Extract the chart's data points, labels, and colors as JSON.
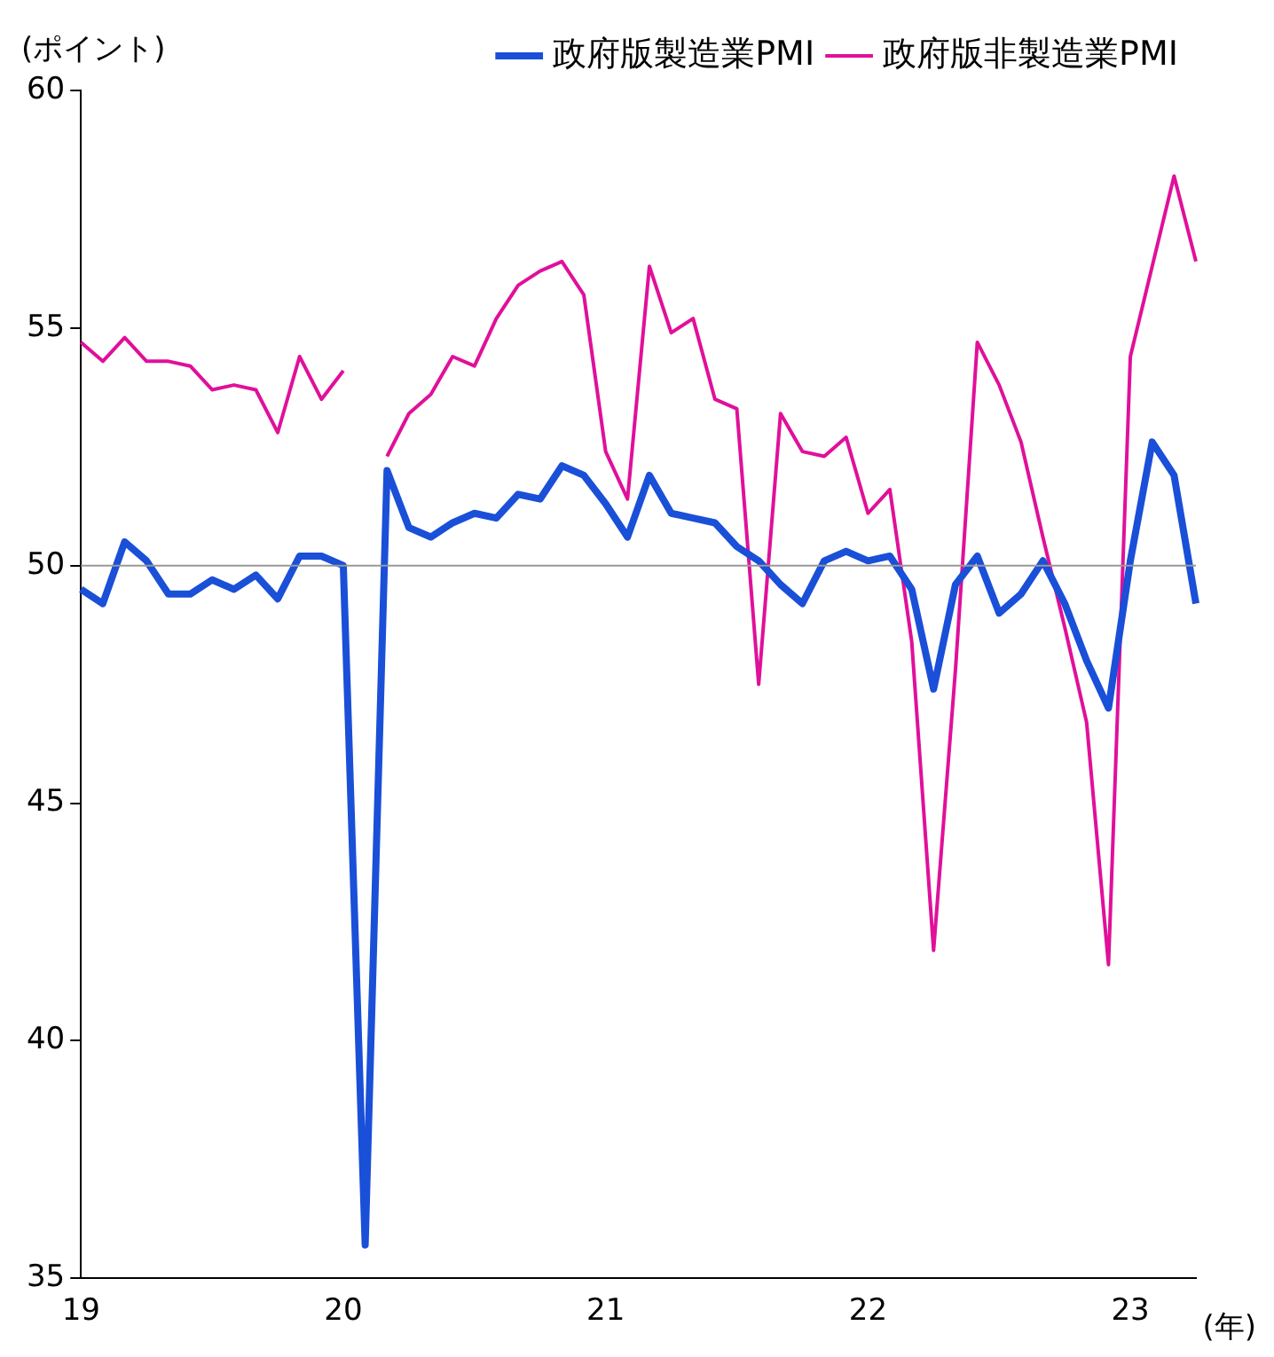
{
  "chart_data": {
    "type": "line",
    "xlabel": "(年)",
    "ylabel": "(ポイント)",
    "categories": [
      "19",
      null,
      null,
      null,
      null,
      null,
      null,
      null,
      null,
      null,
      null,
      null,
      "20",
      null,
      null,
      null,
      null,
      null,
      null,
      null,
      null,
      null,
      null,
      null,
      "21",
      null,
      null,
      null,
      null,
      null,
      null,
      null,
      null,
      null,
      null,
      null,
      "22",
      null,
      null,
      null,
      null,
      null,
      null,
      null,
      null,
      null,
      null,
      null,
      "23",
      null,
      null,
      null
    ],
    "series": [
      {
        "name": "政府版製造業PMI",
        "color": "#1a4fd8",
        "values": [
          49.5,
          49.2,
          50.5,
          50.1,
          49.4,
          49.4,
          49.7,
          49.5,
          49.8,
          49.3,
          50.2,
          50.2,
          50.0,
          35.7,
          52.0,
          50.8,
          50.6,
          50.9,
          51.1,
          51.0,
          51.5,
          51.4,
          52.1,
          51.9,
          51.3,
          50.6,
          51.9,
          51.1,
          51.0,
          50.9,
          50.4,
          50.1,
          49.6,
          49.2,
          50.1,
          50.3,
          50.1,
          50.2,
          49.5,
          47.4,
          49.6,
          50.2,
          49.0,
          49.4,
          50.1,
          49.2,
          48.0,
          47.0,
          50.1,
          52.6,
          51.9,
          49.2
        ]
      },
      {
        "name": "政府版非製造業PMI",
        "color": "#e0109a",
        "values": [
          54.7,
          54.3,
          54.8,
          54.3,
          54.3,
          54.2,
          53.7,
          53.8,
          53.7,
          52.8,
          54.4,
          53.5,
          54.1,
          null,
          52.3,
          53.2,
          53.6,
          54.4,
          54.2,
          55.2,
          55.9,
          56.2,
          56.4,
          55.7,
          52.4,
          51.4,
          56.3,
          54.9,
          55.2,
          53.5,
          53.3,
          47.5,
          53.2,
          52.4,
          52.3,
          52.7,
          51.1,
          51.6,
          48.4,
          41.9,
          47.8,
          54.7,
          53.8,
          52.6,
          50.6,
          48.7,
          46.7,
          41.6,
          54.4,
          56.3,
          58.2,
          56.4
        ]
      }
    ],
    "ylim": [
      35,
      60
    ],
    "yticks": [
      35,
      40,
      45,
      50,
      55,
      60
    ],
    "ref_lines": [
      {
        "axis": "y",
        "value": 50,
        "label": null,
        "color": "#999999"
      }
    ],
    "grid": false,
    "legend": "top right",
    "marker": "none",
    "line_style": "solid"
  }
}
